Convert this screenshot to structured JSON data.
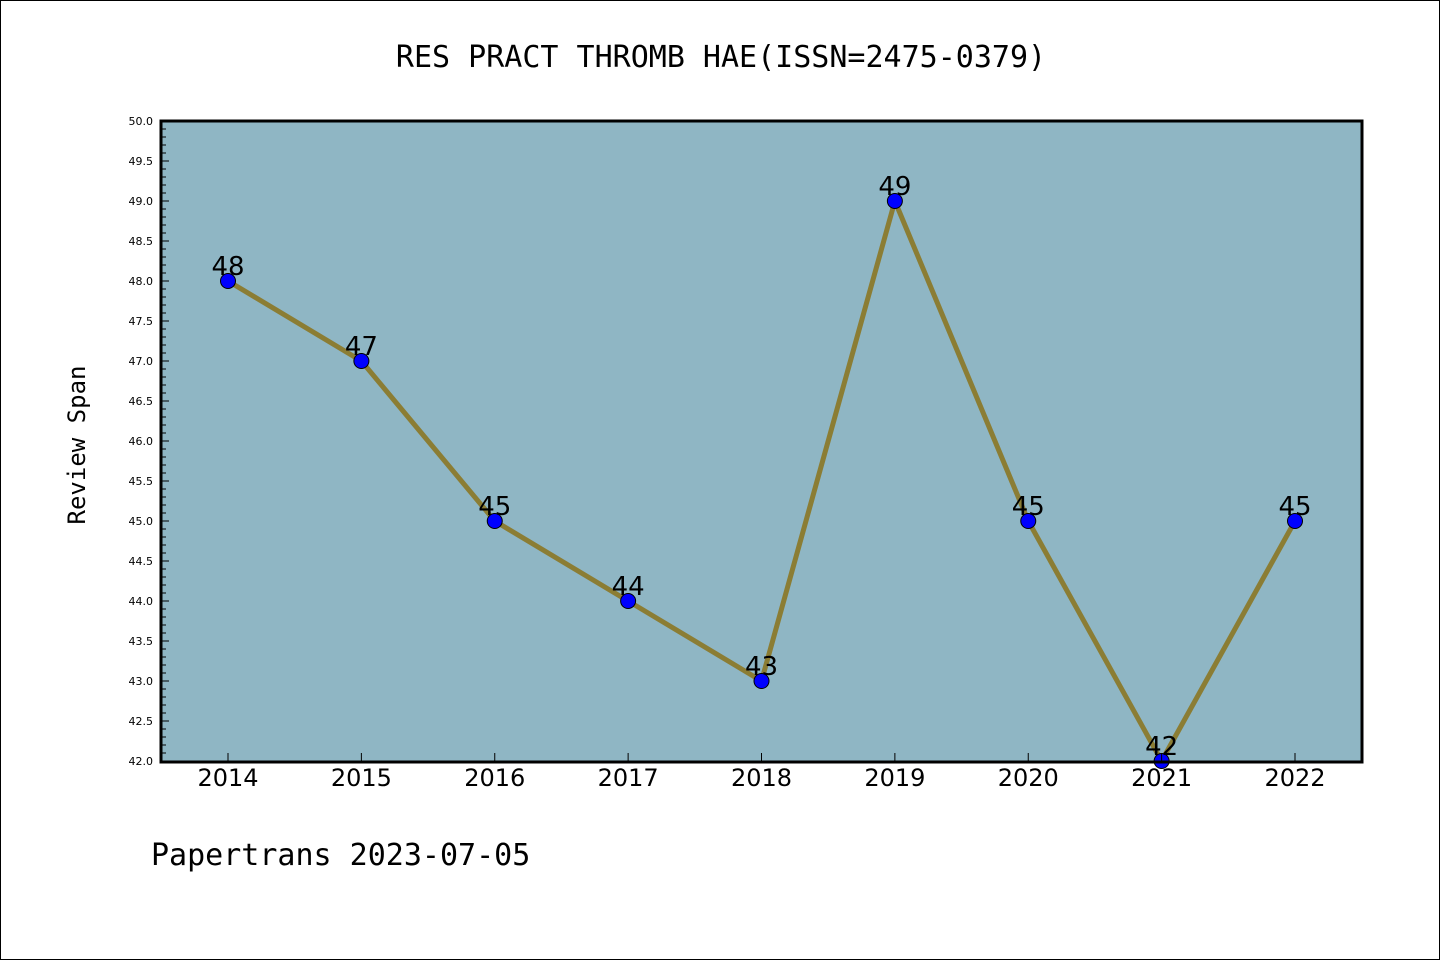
{
  "chart_data": {
    "type": "line",
    "title": "RES PRACT THROMB HAE(ISSN=2475-0379)",
    "xlabel": "",
    "ylabel": "Review Span",
    "categories": [
      "2014",
      "2015",
      "2016",
      "2017",
      "2018",
      "2019",
      "2020",
      "2021",
      "2022"
    ],
    "series": [
      {
        "values": [
          48,
          47,
          45,
          44,
          43,
          49,
          45,
          42,
          45
        ],
        "labels": [
          "48",
          "47",
          "45",
          "44",
          "43",
          "49",
          "45",
          "42",
          "45"
        ]
      }
    ],
    "ylim": [
      42.0,
      50.0
    ],
    "yticks": [
      "42.0",
      "42.5",
      "43.0",
      "43.5",
      "44.0",
      "44.5",
      "45.0",
      "45.5",
      "46.0",
      "46.5",
      "47.0",
      "47.5",
      "48.0",
      "48.5",
      "49.0",
      "49.5",
      "50.0"
    ],
    "grid": false,
    "colors": {
      "plot_background": "#8fb6c4",
      "line": "#8b7d34",
      "marker": "#0000ff"
    }
  },
  "footer": {
    "text": "Papertrans 2023-07-05"
  }
}
